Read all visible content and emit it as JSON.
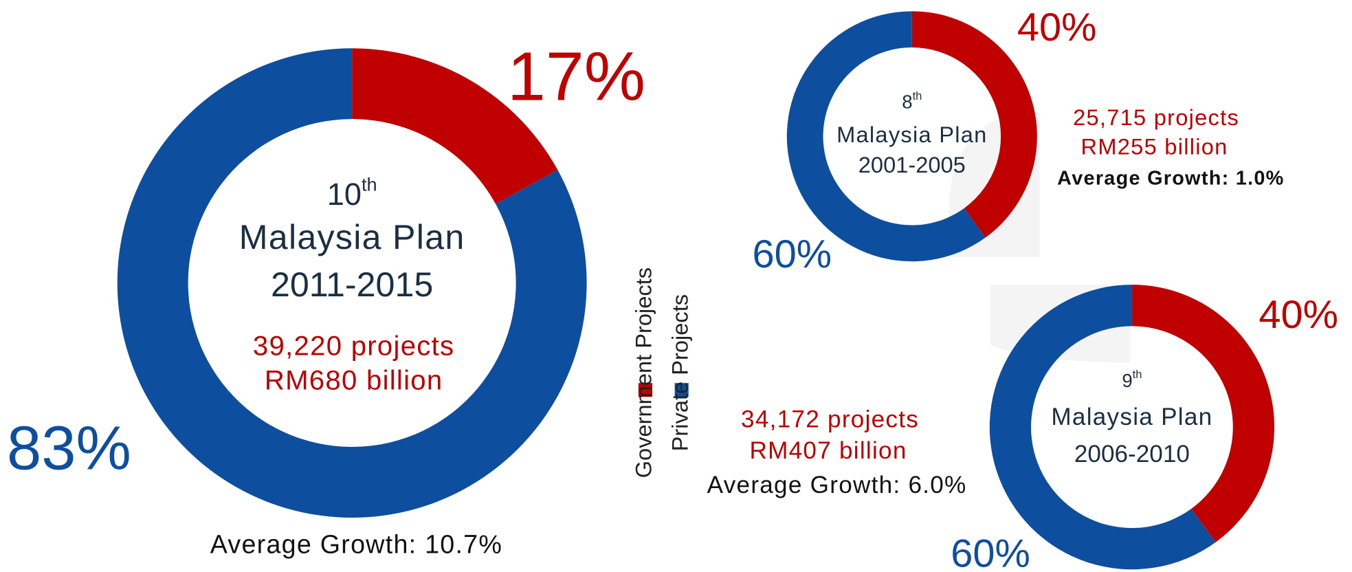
{
  "chart_data": [
    {
      "type": "pie",
      "categories": [
        "Government Projects",
        "Private Projects"
      ],
      "values": [
        17,
        83
      ],
      "value_labels": [
        "17%",
        "83%"
      ],
      "colors": [
        "#c00000",
        "#0d4f9e"
      ],
      "ordinal": "10",
      "ordinal_suffix": "th",
      "name": "Malaysia Plan",
      "period": "2011-2015",
      "projects": "39,220 projects",
      "investment": "RM680 billion",
      "growth": "Average Growth: 10.7%"
    },
    {
      "type": "pie",
      "categories": [
        "Government Projects",
        "Private Projects"
      ],
      "values": [
        40,
        60
      ],
      "value_labels": [
        "40%",
        "60%"
      ],
      "colors": [
        "#c00000",
        "#0d4f9e"
      ],
      "ordinal": "8",
      "ordinal_suffix": "th",
      "name": "Malaysia Plan",
      "period": "2001-2005",
      "projects": "25,715 projects",
      "investment": "RM255 billion",
      "growth": "Average Growth: 1.0%"
    },
    {
      "type": "pie",
      "categories": [
        "Government Projects",
        "Private Projects"
      ],
      "values": [
        40,
        60
      ],
      "value_labels": [
        "40%",
        "60%"
      ],
      "colors": [
        "#c00000",
        "#0d4f9e"
      ],
      "ordinal": "9",
      "ordinal_suffix": "th",
      "name": "Malaysia Plan",
      "period": "2006-2010",
      "projects": "34,172 projects",
      "investment": "RM407 billion",
      "growth": "Average Growth: 6.0%"
    }
  ]
}
